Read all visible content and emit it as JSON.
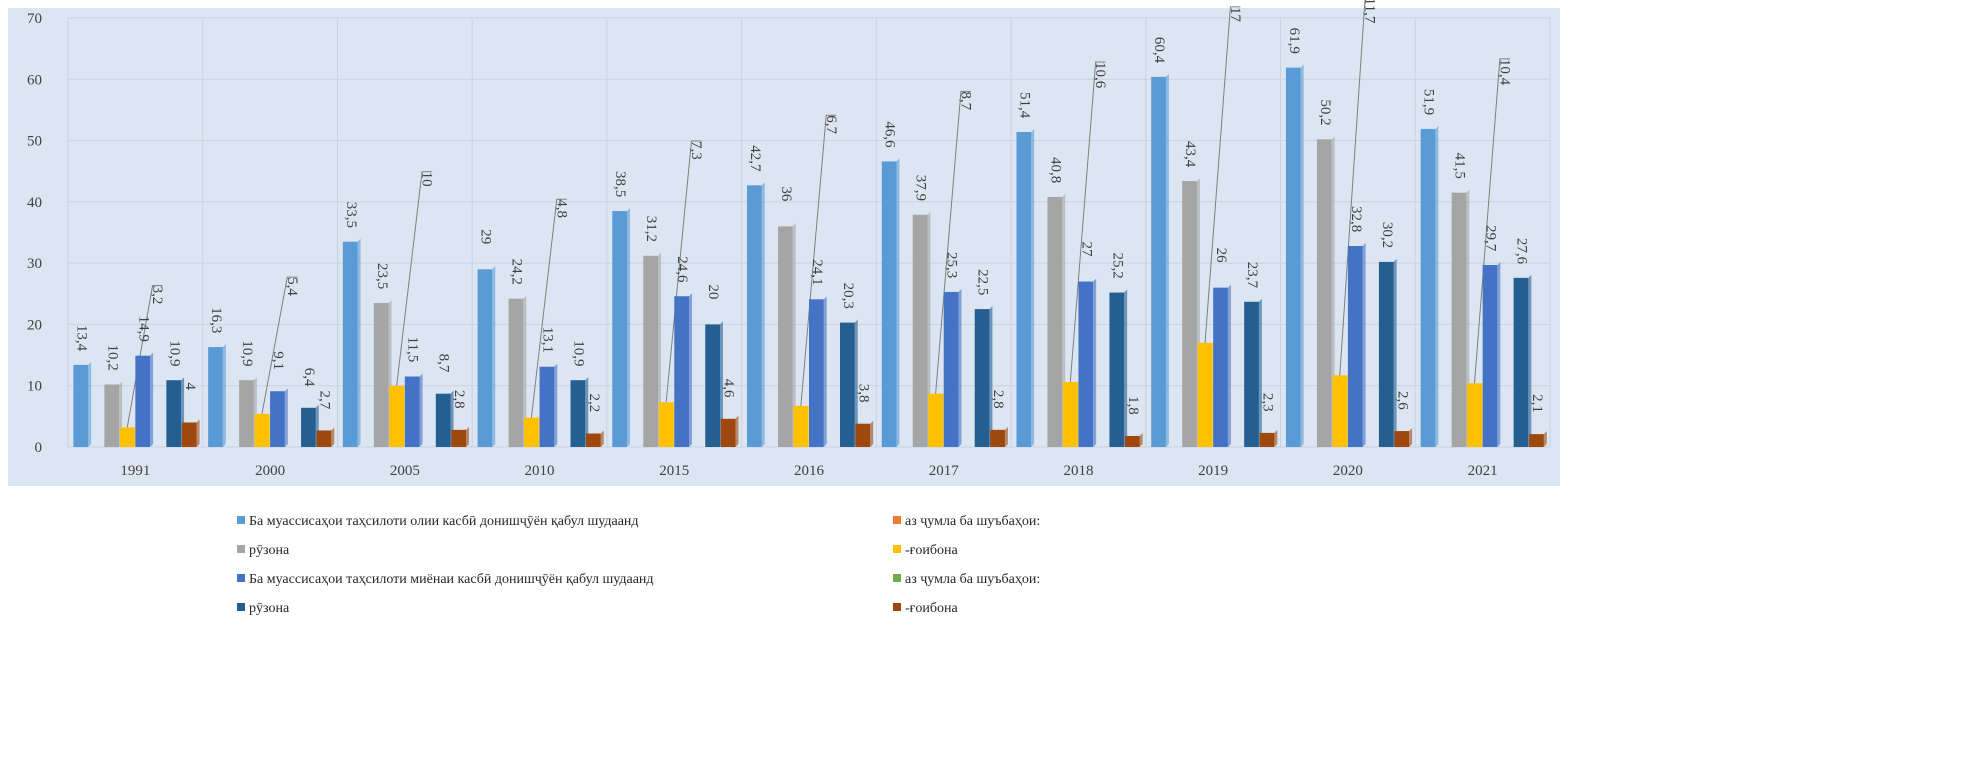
{
  "chart_data": {
    "type": "bar",
    "categories": [
      "1991",
      "2000",
      "2005",
      "2010",
      "2015",
      "2016",
      "2017",
      "2018",
      "2019",
      "2020",
      "2021"
    ],
    "series": [
      {
        "name": "Ба муассисаҳои таҳсилоти олии касбӣ донишҷӯён қабул шудаанд",
        "color": "#5b9bd5",
        "values": [
          13.4,
          16.3,
          33.5,
          29,
          38.5,
          42.7,
          46.6,
          51.4,
          60.4,
          61.9,
          51.9
        ],
        "value_labels": [
          "13,4",
          "16,3",
          "33,5",
          "29",
          "38,5",
          "42,7",
          "46,6",
          "51,4",
          "60,4",
          "61,9",
          "51,9"
        ]
      },
      {
        "name": "аз ҷумла ба шуъбаҳои:",
        "color": "#ed7d31",
        "values": [
          null,
          null,
          null,
          null,
          null,
          null,
          null,
          null,
          null,
          null,
          null
        ]
      },
      {
        "name": "рӯзона",
        "color": "#a5a5a5",
        "values": [
          10.2,
          10.9,
          23.5,
          24.2,
          31.2,
          36,
          37.9,
          40.8,
          43.4,
          50.2,
          41.5
        ],
        "value_labels": [
          "10,2",
          "10,9",
          "23,5",
          "24,2",
          "31,2",
          "36",
          "37,9",
          "40,8",
          "43,4",
          "50,2",
          "41,5"
        ]
      },
      {
        "name": "-ғоибона",
        "color": "#ffc000",
        "values": [
          3.2,
          5.4,
          10,
          4.8,
          7.3,
          6.7,
          8.7,
          10.6,
          17,
          11.7,
          10.4
        ],
        "value_labels": [
          "3,2",
          "5,4",
          "10",
          "4,8",
          "7,3",
          "6,7",
          "8,7",
          "10,6",
          "17",
          "11,7",
          "10,4"
        ]
      },
      {
        "name": "Ба муассисаҳои таҳсилоти миёнаи касбӣ донишҷӯён қабул шудаанд",
        "color": "#4472c4",
        "values": [
          14.9,
          9.1,
          11.5,
          13.1,
          24.6,
          24.1,
          25.3,
          27,
          26,
          32.8,
          29.7
        ],
        "value_labels": [
          "14,9",
          "9,1",
          "11,5",
          "13,1",
          "24,6",
          "24,1",
          "25,3",
          "27",
          "26",
          "32,8",
          "29,7"
        ]
      },
      {
        "name": "аз ҷумла ба шуъбаҳои:",
        "color": "#70ad47",
        "values": [
          null,
          null,
          null,
          null,
          null,
          null,
          null,
          null,
          null,
          null,
          null
        ]
      },
      {
        "name": "рӯзона",
        "color": "#255e91",
        "values": [
          10.9,
          6.4,
          8.7,
          10.9,
          20,
          20.3,
          22.5,
          25.2,
          23.7,
          30.2,
          27.6
        ],
        "value_labels": [
          "10,9",
          "6,4",
          "8,7",
          "10,9",
          "20",
          "20,3",
          "22,5",
          "25,2",
          "23,7",
          "30,2",
          "27,6"
        ]
      },
      {
        "name": "-ғоибона",
        "color": "#9e480e",
        "values": [
          4,
          2.7,
          2.8,
          2.2,
          4.6,
          3.8,
          2.8,
          1.8,
          2.3,
          2.6,
          2.1
        ],
        "value_labels": [
          "4",
          "2,7",
          "2,8",
          "2,2",
          "4,6",
          "3,8",
          "2,8",
          "1,8",
          "2,3",
          "2,6",
          "2,1"
        ]
      }
    ],
    "ylim": [
      0,
      70
    ],
    "yticks": [
      0,
      10,
      20,
      30,
      40,
      50,
      60,
      70
    ],
    "grid": true
  }
}
